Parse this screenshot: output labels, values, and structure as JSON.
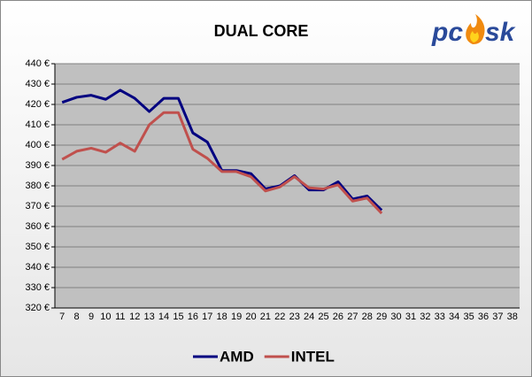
{
  "chart_data": {
    "type": "line",
    "title": "DUAL CORE",
    "logo": {
      "left": "pc",
      "right": "sk"
    },
    "categories": [
      "7",
      "8",
      "9",
      "10",
      "11",
      "12",
      "13",
      "14",
      "15",
      "16",
      "17",
      "18",
      "19",
      "20",
      "21",
      "22",
      "23",
      "24",
      "25",
      "26",
      "27",
      "28",
      "29",
      "30",
      "31",
      "32",
      "33",
      "34",
      "35",
      "36",
      "37",
      "38"
    ],
    "series": [
      {
        "name": "AMD",
        "color": "#000080",
        "values": [
          421,
          423.5,
          424.5,
          422.5,
          427,
          423,
          416.5,
          423,
          423,
          406,
          401.5,
          387.5,
          387.5,
          386,
          378.5,
          380,
          385,
          378,
          378,
          382,
          373.5,
          375,
          368,
          null,
          null,
          null,
          null,
          null,
          null,
          null,
          null,
          null
        ]
      },
      {
        "name": "INTEL",
        "color": "#c0504d",
        "values": [
          393,
          397,
          398.5,
          396.5,
          401,
          397,
          410,
          416,
          416,
          398,
          393.5,
          387,
          387,
          384.5,
          377.5,
          379.5,
          384.5,
          379,
          378.5,
          380.5,
          372.5,
          374,
          366.5,
          null,
          null,
          null,
          null,
          null,
          null,
          null,
          null,
          null
        ]
      }
    ],
    "ylim": [
      320,
      440
    ],
    "yticks": [
      {
        "value": 320,
        "label": "320 €"
      },
      {
        "value": 330,
        "label": "330 €"
      },
      {
        "value": 340,
        "label": "340 €"
      },
      {
        "value": 350,
        "label": "350 €"
      },
      {
        "value": 360,
        "label": "360 €"
      },
      {
        "value": 370,
        "label": "370 €"
      },
      {
        "value": 380,
        "label": "380 €"
      },
      {
        "value": 390,
        "label": "390 €"
      },
      {
        "value": 400,
        "label": "400 €"
      },
      {
        "value": 410,
        "label": "410 €"
      },
      {
        "value": 420,
        "label": "420 €"
      },
      {
        "value": 430,
        "label": "430 €"
      },
      {
        "value": 440,
        "label": "440 €"
      }
    ],
    "grid": true,
    "legend": "bottom"
  }
}
